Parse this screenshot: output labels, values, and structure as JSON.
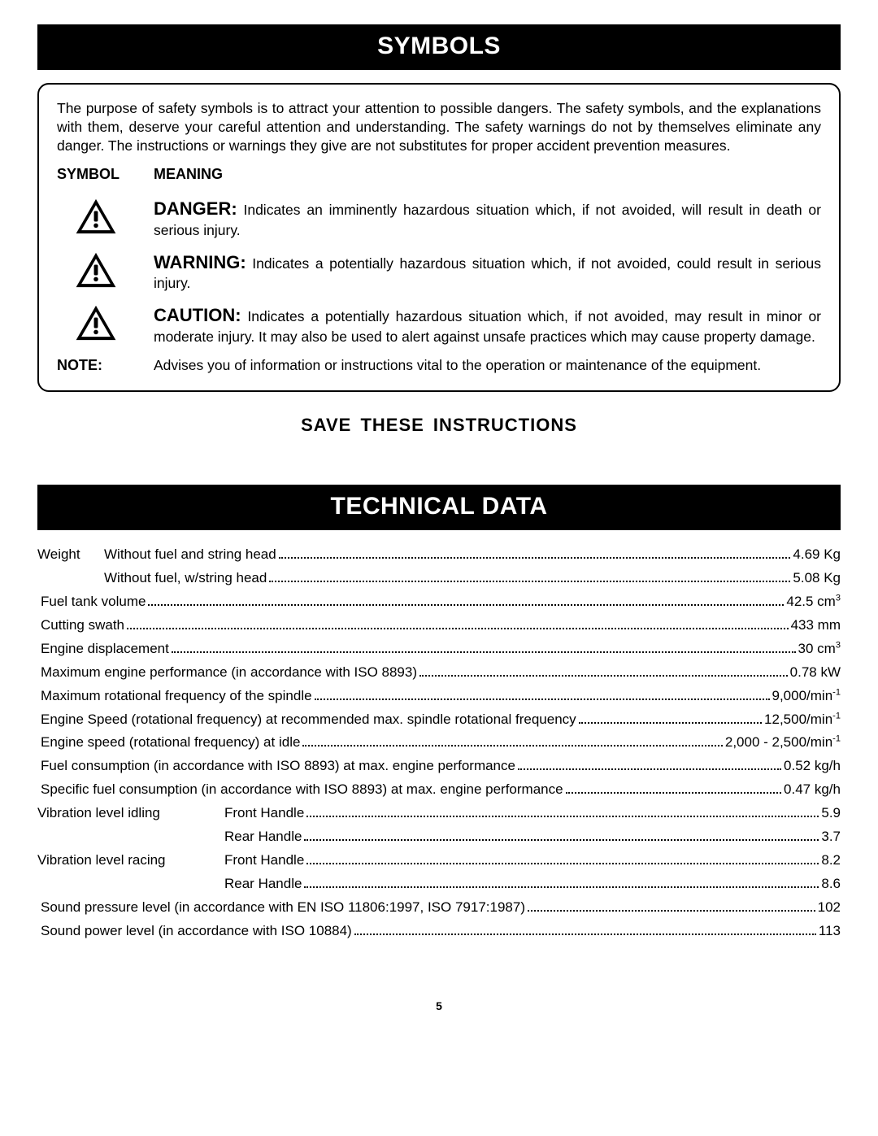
{
  "colors": {
    "header_bg": "#000000",
    "header_text": "#ffffff",
    "page_bg": "#ffffff",
    "text_color": "#000000",
    "box_border": "#000000"
  },
  "typography": {
    "body_font": "Arial, Helvetica, sans-serif",
    "body_size_pt": 13,
    "header_size_pt": 23,
    "header_weight": "bold"
  },
  "symbols_section": {
    "title": "SYMBOLS",
    "intro": "The purpose of safety symbols is to attract your attention to possible dangers. The safety symbols, and the explanations with them, deserve your careful attention and understanding. The safety warnings do not by themselves eliminate any danger. The instructions or warnings they give are not substitutes for proper accident prevention measures.",
    "col_symbol": "SYMBOL",
    "col_meaning": "MEANING",
    "rows": [
      {
        "icon": "warning-triangle",
        "lead": "DANGER:",
        "body": " Indicates an imminently hazardous situation which, if not avoided, will result in death or serious injury."
      },
      {
        "icon": "warning-triangle",
        "lead": "WARNING:",
        "body": " Indicates a potentially hazardous situation which, if not avoided, could result in serious injury."
      },
      {
        "icon": "warning-triangle",
        "lead": "CAUTION:",
        "body": " Indicates a potentially hazardous situation which, if not avoided, may result in minor or moderate injury. It may also be used to alert against unsafe practices which may cause property damage."
      }
    ],
    "note_label": "NOTE:",
    "note_body": "Advises you of information or instructions vital to the operation or maintenance of the equipment."
  },
  "save_instructions": "SAVE  THESE  INSTRUCTIONS",
  "technical_section": {
    "title": "TECHNICAL DATA",
    "specs": [
      {
        "prefix": "Weight",
        "prefix_w": 78,
        "label": "Without fuel and string head",
        "value": "4.69 Kg"
      },
      {
        "indent": 1,
        "label": "Without fuel, w/string head",
        "value": "5.08 Kg"
      },
      {
        "label": "Fuel tank volume",
        "value": "42.5 cm",
        "sup": "3"
      },
      {
        "label": "Cutting swath",
        "value": "433 mm"
      },
      {
        "label": "Engine displacement",
        "value": "30 cm",
        "sup": "3"
      },
      {
        "label": "Maximum engine performance (in accordance with ISO 8893)",
        "value": "0.78 kW"
      },
      {
        "label": "Maximum rotational frequency of the spindle",
        "value": "9,000/min",
        "sup": "-1"
      },
      {
        "label": "Engine Speed (rotational frequency) at recommended max. spindle rotational frequency",
        "value": "12,500/min",
        "sup": "-1"
      },
      {
        "label": "Engine speed (rotational frequency) at idle",
        "value": "2,000 - 2,500/min",
        "sup": "-1"
      },
      {
        "label": "Fuel consumption (in accordance with ISO 8893) at max. engine performance",
        "value": "0.52 kg/h"
      },
      {
        "label": "Specific fuel consumption (in accordance with ISO 8893) at max. engine performance",
        "value": "0.47 kg/h"
      },
      {
        "prefix": "Vibration level idling",
        "prefix_w": 226,
        "label": "Front Handle",
        "value": "5.9"
      },
      {
        "indent": 2,
        "label": "Rear Handle",
        "value": "3.7"
      },
      {
        "prefix": "Vibration level racing",
        "prefix_w": 226,
        "label": "Front Handle",
        "value": "8.2"
      },
      {
        "indent": 2,
        "label": "Rear Handle",
        "value": "8.6"
      },
      {
        "label": "Sound pressure level (in accordance with EN ISO 11806:1997, ISO 7917:1987)",
        "value": "102"
      },
      {
        "label": "Sound power level (in accordance with ISO 10884)",
        "value": "113"
      }
    ]
  },
  "page_number": "5"
}
